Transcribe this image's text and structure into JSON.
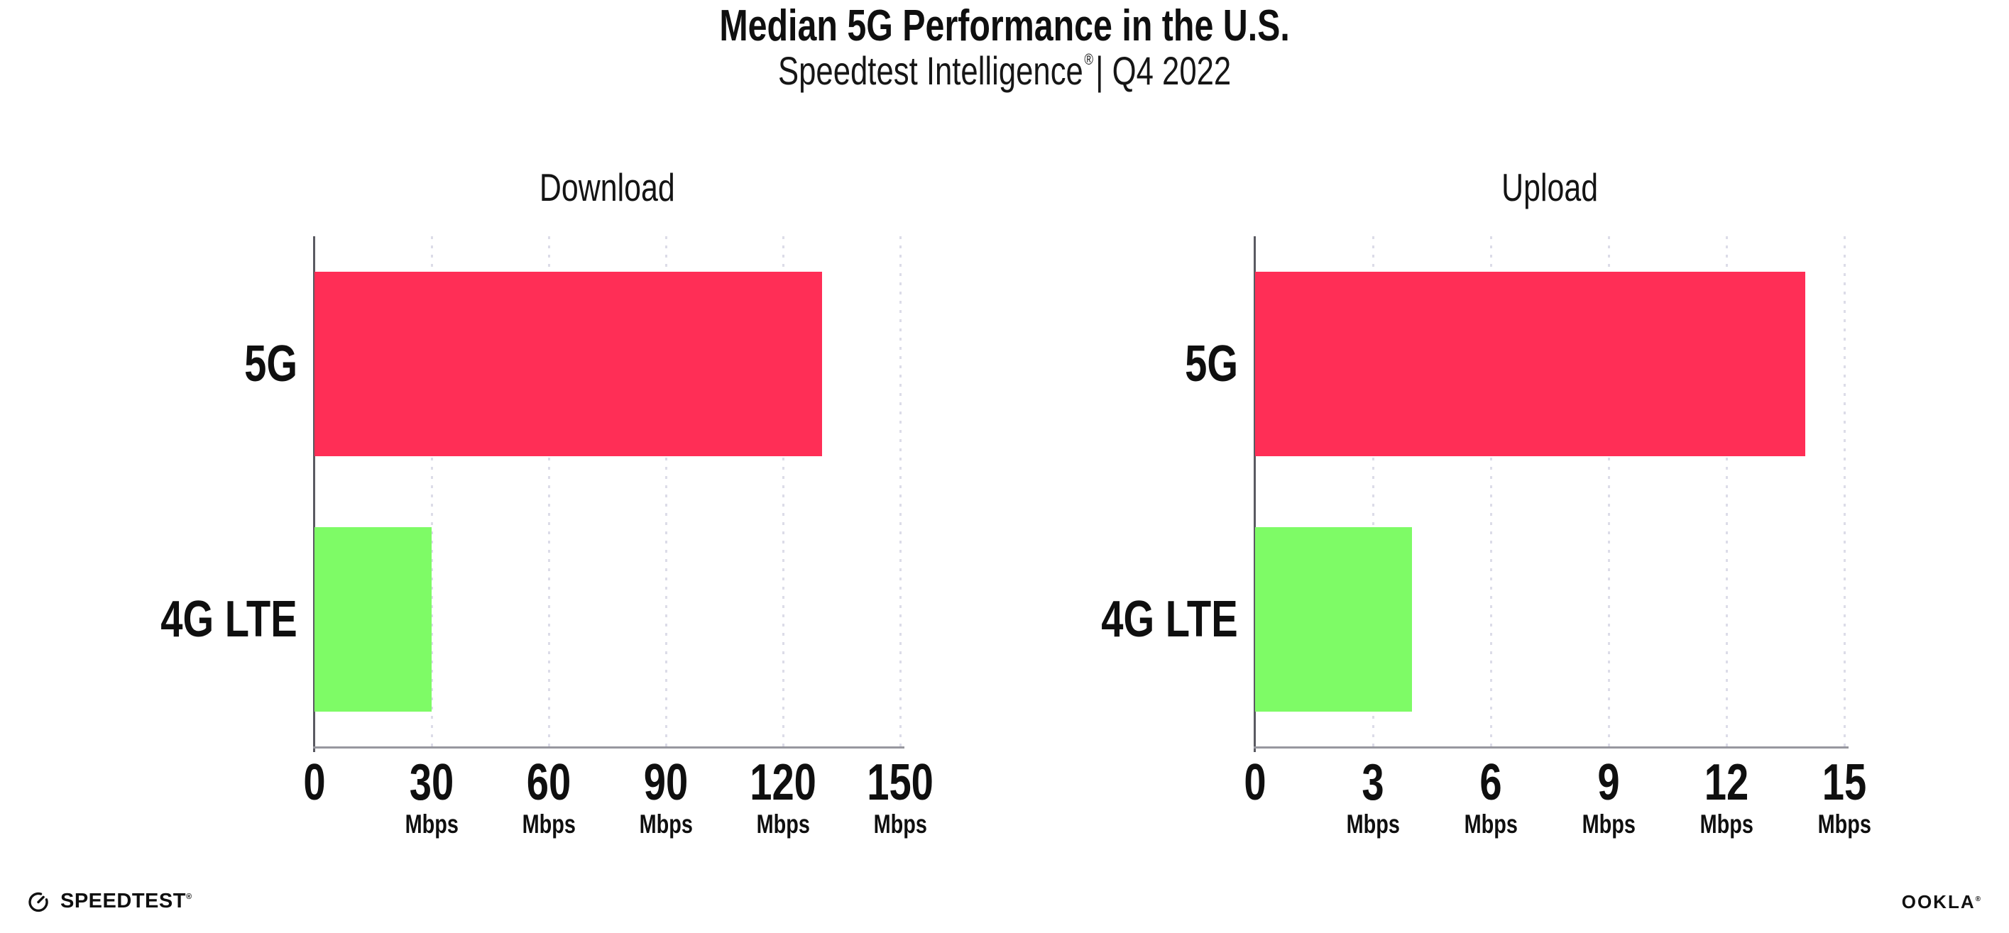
{
  "header": {
    "title": "Median 5G Performance in the U.S.",
    "subtitle": {
      "brand": "Speedtest Intelligence",
      "reg": "®",
      "period": "| Q4 2022"
    }
  },
  "colors": {
    "bar_5g": "#FF2E56",
    "bar_4g_lte": "#7EFB66",
    "gridline": "#DCDCE8",
    "axis_y": "#5A5A62",
    "axis_x": "#97979F",
    "text": "#0F0F0F"
  },
  "chart_data": [
    {
      "type": "bar",
      "orientation": "horizontal",
      "title": "Download",
      "categories": [
        "5G",
        "4G LTE"
      ],
      "values": [
        130,
        30
      ],
      "unit": "Mbps",
      "xlim": [
        0,
        150
      ],
      "xticks": [
        0,
        30,
        60,
        90,
        120,
        150
      ],
      "grid": "vertical-dotted",
      "legend": "none",
      "colors": [
        "#FF2E56",
        "#7EFB66"
      ]
    },
    {
      "type": "bar",
      "orientation": "horizontal",
      "title": "Upload",
      "categories": [
        "5G",
        "4G LTE"
      ],
      "values": [
        14,
        4
      ],
      "unit": "Mbps",
      "xlim": [
        0,
        15
      ],
      "xticks": [
        0,
        3,
        6,
        9,
        12,
        15
      ],
      "grid": "vertical-dotted",
      "legend": "none",
      "colors": [
        "#FF2E56",
        "#7EFB66"
      ]
    }
  ],
  "footer": {
    "speedtest": {
      "label": "SPEEDTEST",
      "mark": "®"
    },
    "ookla": {
      "label": "OOKLA",
      "mark": "®"
    }
  }
}
